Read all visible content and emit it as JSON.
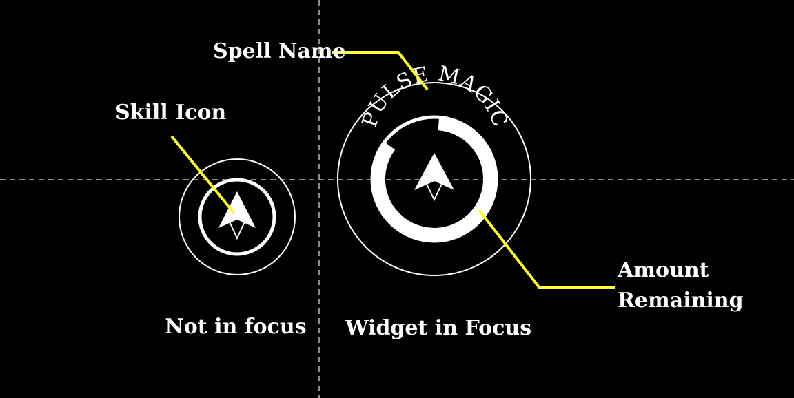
{
  "colors": {
    "background": "#000000",
    "foreground": "#ffffff",
    "callout": "#ffff33",
    "guide": "#bbbbbb"
  },
  "labels": {
    "spell_name": "Spell Name",
    "skill_icon": "Skill Icon",
    "amount_line1": "Amount",
    "amount_line2": "Remaining",
    "not_in_focus": "Not in focus",
    "widget_in_focus": "Widget in Focus"
  },
  "focused_widget": {
    "spell_title": "PULSE MAGIC",
    "icon": "arrow-up-icon"
  },
  "unfocused_widget": {
    "icon": "arrow-up-icon"
  }
}
